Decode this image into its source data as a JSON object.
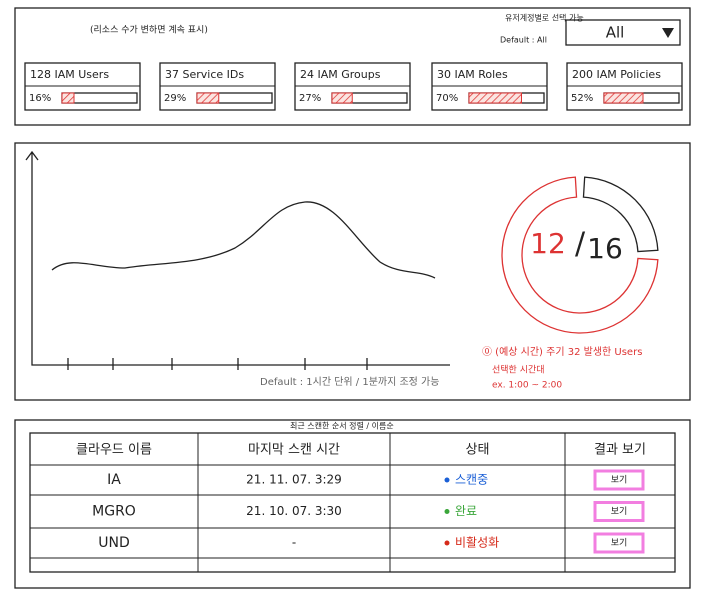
{
  "filter": {
    "note": "유저계정별로 선택 가능",
    "default_note": "Default : All",
    "selected": "All"
  },
  "cards_note": "(리소스 수가 변하면 계속 표시)",
  "cards": [
    {
      "title": "128 IAM Users",
      "percent": 16,
      "percent_label": "16%"
    },
    {
      "title": "37 Service IDs",
      "percent": 29,
      "percent_label": "29%"
    },
    {
      "title": "24 IAM Groups",
      "percent": 27,
      "percent_label": "27%"
    },
    {
      "title": "30 IAM Roles",
      "percent": 70,
      "percent_label": "70%"
    },
    {
      "title": "200 IAM Policies",
      "percent": 52,
      "percent_label": "52%"
    }
  ],
  "timeline": {
    "note": "Default : 1시간 단위 / 1분까지 조정 가능"
  },
  "donut": {
    "value": 12,
    "total": 16,
    "caption": "⓪ (예상 시간) 주기 32 발생한 Users",
    "sub1": "선택한 시간대",
    "sub2": "ex. 1:00 ~ 2:00"
  },
  "table": {
    "note": "최근 스캔한 순서 정렬 / 이름순",
    "headers": [
      "클라우드 이름",
      "마지막 스캔 시간",
      "상태",
      "결과 보기"
    ],
    "rows": [
      [
        "IA",
        "21. 11. 07. 3:29",
        "스캔중",
        "보기"
      ],
      [
        "MGRO",
        "21. 10. 07. 3:30",
        "완료",
        "보기"
      ],
      [
        "UND",
        "-",
        "비활성화",
        "보기"
      ]
    ],
    "status_colors": [
      "#1a5fd6",
      "#3aa63a",
      "#d62a1a"
    ]
  }
}
